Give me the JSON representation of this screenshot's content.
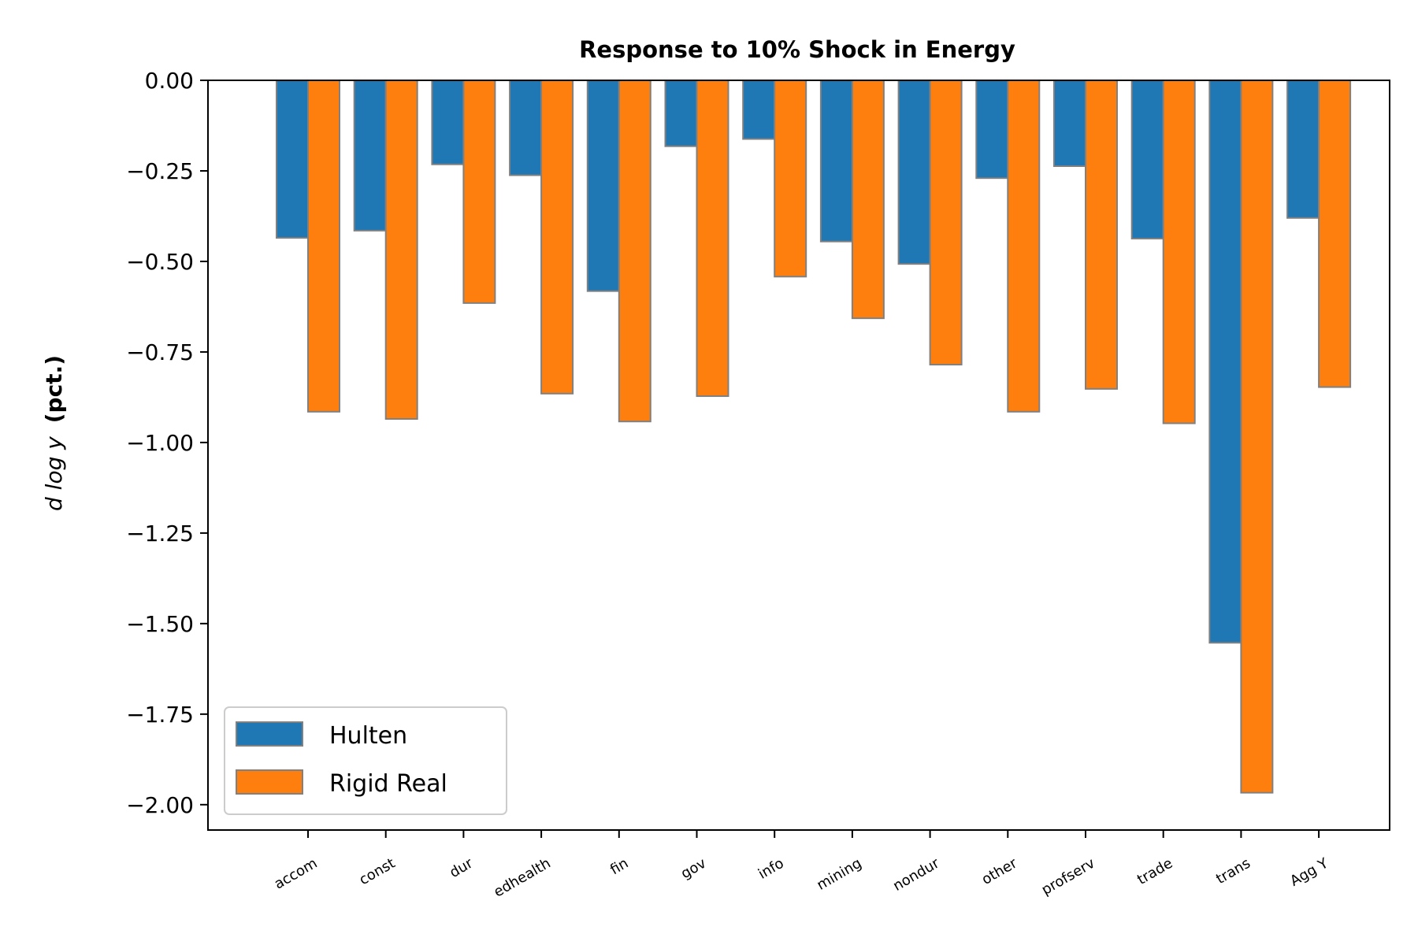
{
  "chart_data": {
    "type": "bar",
    "title": "Response to 10% Shock in Energy",
    "ylabel_math": "d log y",
    "ylabel_bold": "(pct.)",
    "xlabel": "",
    "categories": [
      "accom",
      "const",
      "dur",
      "edhealth",
      "fin",
      "gov",
      "info",
      "mining",
      "nondur",
      "other",
      "profserv",
      "trade",
      "trans",
      "Agg Y"
    ],
    "series": [
      {
        "name": "Hulten",
        "color": "#1f77b4",
        "values": [
          -0.435,
          -0.415,
          -0.232,
          -0.262,
          -0.582,
          -0.182,
          -0.162,
          -0.445,
          -0.507,
          -0.27,
          -0.237,
          -0.437,
          -1.553,
          -0.38
        ]
      },
      {
        "name": "Rigid Real",
        "color": "#ff7f0e",
        "values": [
          -0.915,
          -0.935,
          -0.615,
          -0.865,
          -0.942,
          -0.872,
          -0.542,
          -0.657,
          -0.785,
          -0.915,
          -0.852,
          -0.947,
          -1.967,
          -0.847
        ]
      }
    ],
    "yticks": [
      "0.00",
      "−0.25",
      "−0.50",
      "−0.75",
      "−1.00",
      "−1.25",
      "−1.50",
      "−1.75",
      "−2.00"
    ],
    "ytick_values": [
      0,
      -0.25,
      -0.5,
      -0.75,
      -1.0,
      -1.25,
      -1.5,
      -1.75,
      -2.0
    ],
    "ylim": [
      -2.07,
      0
    ],
    "grid": false,
    "legend_position": "lower-left",
    "edge_color": "#808080"
  }
}
